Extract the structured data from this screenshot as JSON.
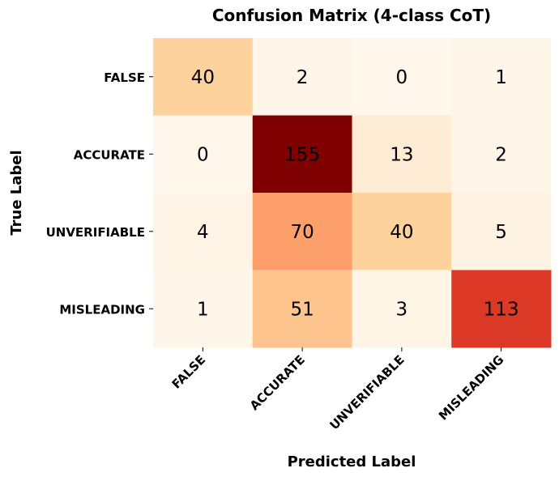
{
  "chart_data": {
    "type": "heatmap",
    "title": "Confusion Matrix (4-class CoT)",
    "xlabel": "Predicted Label",
    "ylabel": "True Label",
    "x_categories": [
      "FALSE",
      "ACCURATE",
      "UNVERIFIABLE",
      "MISLEADING"
    ],
    "y_categories": [
      "FALSE",
      "ACCURATE",
      "UNVERIFIABLE",
      "MISLEADING"
    ],
    "values": [
      [
        40,
        2,
        0,
        1
      ],
      [
        0,
        155,
        13,
        2
      ],
      [
        4,
        70,
        40,
        5
      ],
      [
        1,
        51,
        3,
        113
      ]
    ],
    "colormap": "OrRd",
    "value_range": [
      0,
      155
    ],
    "colorbar": false,
    "annotations": true
  }
}
